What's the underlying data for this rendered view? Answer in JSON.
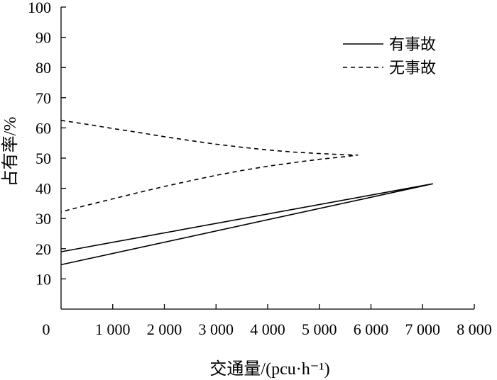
{
  "chart_data": {
    "type": "line",
    "xlabel": "交通量/(pcu·h⁻¹)",
    "ylabel": "占有率/%",
    "xlim": [
      0,
      8000
    ],
    "ylim": [
      0,
      100
    ],
    "x_ticks": [
      {
        "value": 0,
        "label": "0"
      },
      {
        "value": 1000,
        "label": "1 000"
      },
      {
        "value": 2000,
        "label": "2 000"
      },
      {
        "value": 3000,
        "label": "3 000"
      },
      {
        "value": 4000,
        "label": "4 000"
      },
      {
        "value": 5000,
        "label": "5 000"
      },
      {
        "value": 6000,
        "label": "6 000"
      },
      {
        "value": 7000,
        "label": "7 000"
      },
      {
        "value": 8000,
        "label": "8 000"
      }
    ],
    "y_ticks": [
      {
        "value": 10,
        "label": "10"
      },
      {
        "value": 20,
        "label": "20"
      },
      {
        "value": 30,
        "label": "30"
      },
      {
        "value": 40,
        "label": "40"
      },
      {
        "value": 50,
        "label": "50"
      },
      {
        "value": 60,
        "label": "60"
      },
      {
        "value": 70,
        "label": "70"
      },
      {
        "value": 80,
        "label": "80"
      },
      {
        "value": 90,
        "label": "90"
      },
      {
        "value": 100,
        "label": "100"
      }
    ],
    "grid": false,
    "legend_position": "top-right",
    "series": [
      {
        "name": "有事故",
        "style": "solid",
        "color": "#000000",
        "points": [
          [
            0,
            19
          ],
          [
            7200,
            41.5
          ],
          [
            0,
            14.7
          ]
        ]
      },
      {
        "name": "无事故",
        "style": "dashed",
        "color": "#000000",
        "points": [
          [
            0,
            62.5
          ],
          [
            500,
            61.2
          ],
          [
            1000,
            59.8
          ],
          [
            1500,
            58.5
          ],
          [
            2000,
            57.1
          ],
          [
            2500,
            55.8
          ],
          [
            3000,
            54.6
          ],
          [
            3500,
            53.6
          ],
          [
            4000,
            52.7
          ],
          [
            4500,
            52.0
          ],
          [
            5000,
            51.5
          ],
          [
            5500,
            51.1
          ],
          [
            5750,
            51.0
          ],
          [
            5500,
            50.5
          ],
          [
            5000,
            49.6
          ],
          [
            4500,
            48.5
          ],
          [
            4000,
            47.3
          ],
          [
            3500,
            45.9
          ],
          [
            3000,
            44.3
          ],
          [
            2500,
            42.5
          ],
          [
            2000,
            40.6
          ],
          [
            1500,
            38.6
          ],
          [
            1000,
            36.5
          ],
          [
            500,
            34.4
          ],
          [
            0,
            32.2
          ]
        ]
      }
    ]
  }
}
